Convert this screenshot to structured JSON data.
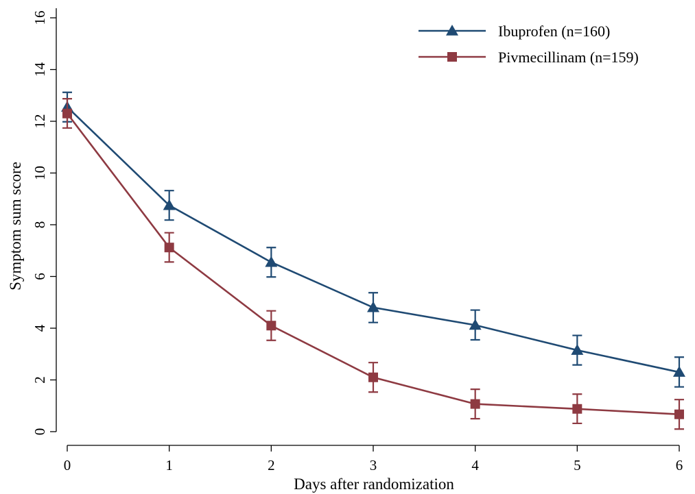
{
  "chart_data": {
    "type": "line",
    "title": "",
    "xlabel": "Days after randomization",
    "ylabel": "Symptom sum score",
    "xlim": [
      0,
      6
    ],
    "ylim": [
      0,
      16
    ],
    "x_ticks": [
      0,
      1,
      2,
      3,
      4,
      5,
      6
    ],
    "y_ticks": [
      0,
      2,
      4,
      6,
      8,
      10,
      12,
      14,
      16
    ],
    "grid": false,
    "legend_position": "top-right",
    "x": [
      0,
      1,
      2,
      3,
      4,
      5,
      6
    ],
    "series": [
      {
        "name": "Ibuprofen (n=160)",
        "marker": "triangle",
        "color": "#1f4a73",
        "values": [
          12.55,
          8.75,
          6.55,
          4.8,
          4.12,
          3.15,
          2.3
        ],
        "lower": [
          11.98,
          8.18,
          5.98,
          4.22,
          3.55,
          2.58,
          1.73
        ],
        "upper": [
          13.12,
          9.32,
          7.12,
          5.37,
          4.7,
          3.72,
          2.88
        ]
      },
      {
        "name": "Pivmecillinam (n=159)",
        "marker": "square",
        "color": "#8e3a42",
        "values": [
          12.3,
          7.12,
          4.1,
          2.1,
          1.07,
          0.88,
          0.67
        ],
        "lower": [
          11.74,
          6.56,
          3.53,
          1.53,
          0.5,
          0.32,
          0.1
        ],
        "upper": [
          12.87,
          7.69,
          4.67,
          2.67,
          1.64,
          1.45,
          1.24
        ]
      }
    ]
  }
}
